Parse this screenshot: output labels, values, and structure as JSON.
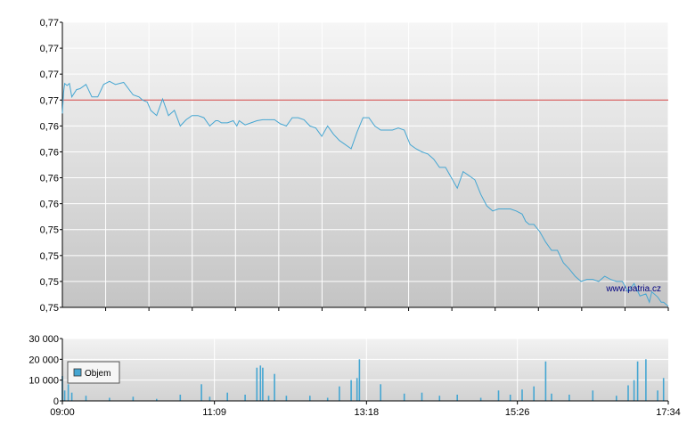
{
  "chart_data": [
    {
      "type": "line",
      "title": "",
      "xlabel": "",
      "ylabel": "",
      "yticks": [
        "0,77",
        "0,77",
        "0,77",
        "0,77",
        "0,76",
        "0,76",
        "0,76",
        "0,76",
        "0,75",
        "0,75",
        "0,75",
        "0,75"
      ],
      "ytick_values": [
        0.774,
        0.7715,
        0.769,
        0.7665,
        0.764,
        0.7615,
        0.759,
        0.7565,
        0.754,
        0.7515,
        0.749,
        0.7465
      ],
      "ylim": [
        0.7465,
        0.774
      ],
      "xlim": [
        "09:00",
        "17:34"
      ],
      "grid": true,
      "reference_line": {
        "value": 0.7665,
        "color": "#d04040"
      },
      "series": [
        {
          "color": "#45a6d2",
          "x": [
            "09:00",
            "09:01",
            "09:02",
            "09:04",
            "09:06",
            "09:08",
            "09:12",
            "09:15",
            "09:20",
            "09:25",
            "09:30",
            "09:35",
            "09:40",
            "09:45",
            "09:52",
            "10:00",
            "10:05",
            "10:08",
            "10:12",
            "10:15",
            "10:20",
            "10:25",
            "10:30",
            "10:35",
            "10:40",
            "10:45",
            "10:50",
            "10:55",
            "11:00",
            "11:05",
            "11:10",
            "11:12",
            "11:15",
            "11:20",
            "11:25",
            "11:28",
            "11:30",
            "11:35",
            "11:40",
            "11:45",
            "11:50",
            "12:00",
            "12:05",
            "12:10",
            "12:15",
            "12:20",
            "12:25",
            "12:30",
            "12:35",
            "12:40",
            "12:45",
            "12:50",
            "12:55",
            "13:00",
            "13:05",
            "13:10",
            "13:15",
            "13:20",
            "13:25",
            "13:30",
            "13:35",
            "13:40",
            "13:45",
            "13:50",
            "13:55",
            "14:00",
            "14:05",
            "14:10",
            "14:15",
            "14:20",
            "14:25",
            "14:30",
            "14:35",
            "14:40",
            "14:45",
            "14:50",
            "14:55",
            "15:00",
            "15:05",
            "15:10",
            "15:15",
            "15:20",
            "15:25",
            "15:30",
            "15:33",
            "15:36",
            "15:40",
            "15:45",
            "15:50",
            "15:55",
            "16:00",
            "16:05",
            "16:10",
            "16:15",
            "16:20",
            "16:25",
            "16:30",
            "16:35",
            "16:40",
            "16:45",
            "16:50",
            "16:55",
            "17:00",
            "17:05",
            "17:10",
            "17:15",
            "17:18",
            "17:20",
            "17:25",
            "17:28",
            "17:30",
            "17:34"
          ],
          "values": [
            0.7652,
            0.7672,
            0.7681,
            0.7679,
            0.7681,
            0.7668,
            0.7675,
            0.7676,
            0.768,
            0.7668,
            0.7668,
            0.768,
            0.7683,
            0.768,
            0.7682,
            0.767,
            0.7668,
            0.7665,
            0.7663,
            0.7655,
            0.765,
            0.7666,
            0.765,
            0.7655,
            0.764,
            0.7646,
            0.765,
            0.765,
            0.7648,
            0.764,
            0.7645,
            0.7645,
            0.7643,
            0.7643,
            0.7645,
            0.764,
            0.7645,
            0.7641,
            0.7643,
            0.7645,
            0.7646,
            0.7646,
            0.7642,
            0.764,
            0.7648,
            0.7648,
            0.7646,
            0.764,
            0.7638,
            0.763,
            0.764,
            0.7632,
            0.7626,
            0.7622,
            0.7618,
            0.7634,
            0.7648,
            0.7648,
            0.764,
            0.7636,
            0.7636,
            0.7636,
            0.7638,
            0.7636,
            0.7622,
            0.7618,
            0.7615,
            0.7613,
            0.7608,
            0.76,
            0.76,
            0.759,
            0.758,
            0.7596,
            0.7592,
            0.7588,
            0.7574,
            0.7563,
            0.7558,
            0.756,
            0.756,
            0.756,
            0.7558,
            0.7555,
            0.7548,
            0.7545,
            0.7545,
            0.7538,
            0.7528,
            0.752,
            0.752,
            0.7508,
            0.7502,
            0.7495,
            0.749,
            0.7492,
            0.7492,
            0.749,
            0.7495,
            0.7492,
            0.749,
            0.749,
            0.748,
            0.7488,
            0.7476,
            0.7478,
            0.747,
            0.748,
            0.7475,
            0.747,
            0.747,
            0.7466
          ]
        }
      ],
      "annotations": [
        "www.patria.cz"
      ]
    },
    {
      "type": "bar",
      "title": "",
      "xlabel": "",
      "ylabel": "",
      "yticks": [
        "30 000",
        "20 000",
        "10 000",
        "0"
      ],
      "ytick_values": [
        30000,
        20000,
        10000,
        0
      ],
      "ylim": [
        0,
        30000
      ],
      "xticks": [
        "09:00",
        "11:09",
        "13:18",
        "15:26",
        "17:34"
      ],
      "xlim": [
        "09:00",
        "17:34"
      ],
      "grid": true,
      "legend": {
        "position": "top-left",
        "entries": [
          "Objem"
        ]
      },
      "series": [
        {
          "name": "Objem",
          "color": "#45a6d2",
          "x": [
            "09:00",
            "09:02",
            "09:05",
            "09:08",
            "09:20",
            "09:40",
            "10:00",
            "10:20",
            "10:40",
            "10:58",
            "11:05",
            "11:20",
            "11:35",
            "11:45",
            "11:48",
            "11:50",
            "11:55",
            "12:00",
            "12:10",
            "12:30",
            "12:45",
            "12:55",
            "13:05",
            "13:10",
            "13:12",
            "13:30",
            "13:50",
            "14:05",
            "14:20",
            "14:35",
            "14:55",
            "15:10",
            "15:20",
            "15:30",
            "15:40",
            "15:50",
            "15:55",
            "16:10",
            "16:30",
            "16:50",
            "17:00",
            "17:05",
            "17:08",
            "17:15",
            "17:25",
            "17:30"
          ],
          "values": [
            12000,
            5000,
            8000,
            4000,
            2500,
            1500,
            2000,
            1000,
            3000,
            8000,
            2000,
            4000,
            3000,
            16000,
            17000,
            16000,
            2500,
            13000,
            2500,
            2500,
            1500,
            7000,
            10000,
            11000,
            20000,
            8000,
            3500,
            4000,
            2500,
            3000,
            1500,
            5000,
            3000,
            5500,
            7000,
            19000,
            3500,
            3000,
            5000,
            2500,
            7500,
            10000,
            19000,
            20000,
            5000,
            11000
          ]
        }
      ]
    }
  ],
  "watermark": "www.patria.cz",
  "colors": {
    "line": "#45a6d2",
    "reference": "#d04040",
    "plot_top": "#f4f4f4",
    "plot_bottom": "#c6c6c6",
    "grid": "#ffffff"
  }
}
